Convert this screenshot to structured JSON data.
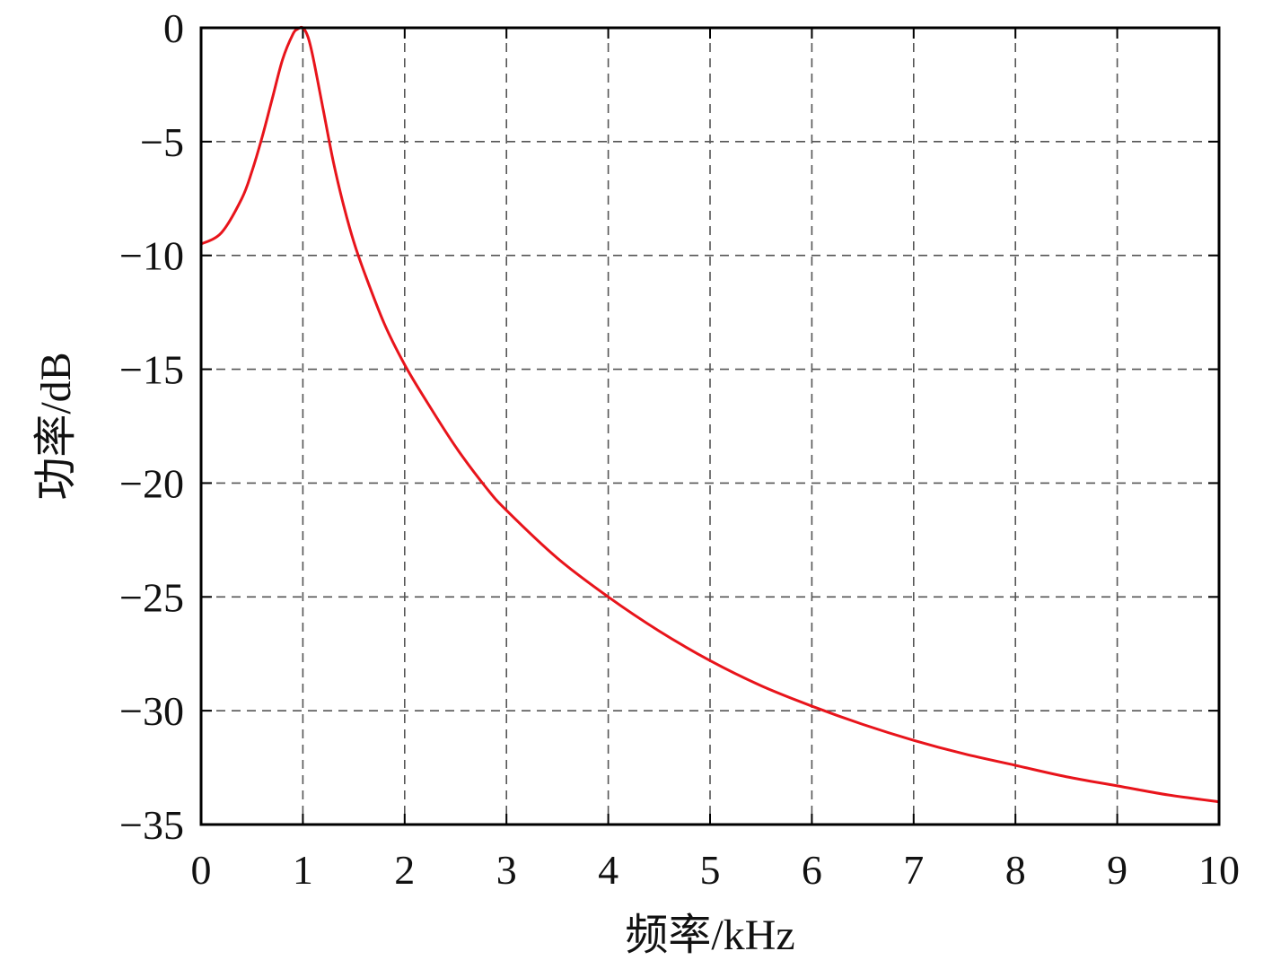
{
  "chart_data": {
    "type": "line",
    "xlabel": "频率/kHz",
    "ylabel": "功率/dB",
    "xlim": [
      0,
      10
    ],
    "ylim": [
      -35,
      0
    ],
    "x_ticks": [
      0,
      1,
      2,
      3,
      4,
      5,
      6,
      7,
      8,
      9,
      10
    ],
    "x_tick_labels": [
      "0",
      "1",
      "2",
      "3",
      "4",
      "5",
      "6",
      "7",
      "8",
      "9",
      "10"
    ],
    "y_ticks": [
      0,
      -5,
      -10,
      -15,
      -20,
      -25,
      -30,
      -35
    ],
    "y_tick_labels": [
      "0",
      "−5",
      "−10",
      "−15",
      "−20",
      "−25",
      "−30",
      "−35"
    ],
    "grid": true,
    "line_color": "#e8141b",
    "series": [
      {
        "x": [
          0,
          0.2,
          0.4,
          0.5,
          0.6,
          0.7,
          0.8,
          0.9,
          0.95,
          1.0,
          1.05,
          1.1,
          1.2,
          1.3,
          1.4,
          1.5,
          1.6,
          1.8,
          2.0,
          2.2,
          2.5,
          2.8,
          3.0,
          3.5,
          4.0,
          4.5,
          5.0,
          5.5,
          6.0,
          6.5,
          7.0,
          7.5,
          8.0,
          8.5,
          9.0,
          9.5,
          10.0
        ],
        "y": [
          -9.5,
          -9.0,
          -7.5,
          -6.3,
          -4.8,
          -3.1,
          -1.4,
          -0.3,
          -0.05,
          0,
          -0.4,
          -1.3,
          -3.6,
          -5.9,
          -7.8,
          -9.4,
          -10.7,
          -13.0,
          -14.8,
          -16.3,
          -18.4,
          -20.2,
          -21.2,
          -23.3,
          -25.0,
          -26.5,
          -27.8,
          -28.9,
          -29.8,
          -30.6,
          -31.3,
          -31.9,
          -32.4,
          -32.9,
          -33.3,
          -33.7,
          -34.0
        ]
      }
    ]
  }
}
